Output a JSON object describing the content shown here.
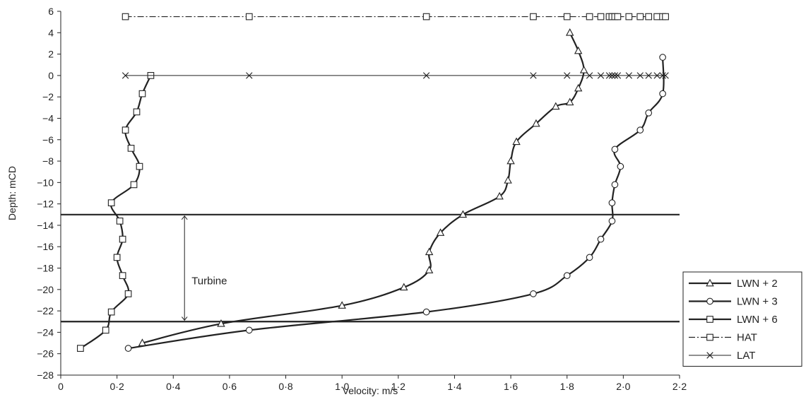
{
  "chart_data": {
    "type": "line",
    "title": "",
    "xlabel": "Velocity: m/s",
    "ylabel": "Depth: mCD",
    "xlim": [
      0,
      2.2
    ],
    "ylim": [
      -28,
      6
    ],
    "x_ticks": [
      "0",
      "0·2",
      "0·4",
      "0·6",
      "0·8",
      "1·0",
      "1·2",
      "1·4",
      "1·6",
      "1·8",
      "2·0",
      "2·2"
    ],
    "y_ticks": [
      "6",
      "4",
      "2",
      "0",
      "−2",
      "−4",
      "−6",
      "−8",
      "−10",
      "−12",
      "−14",
      "−16",
      "−18",
      "−20",
      "−22",
      "−24",
      "−26",
      "−28"
    ],
    "grid": false,
    "legend_position": "bottom-right",
    "series": [
      {
        "name": "LWN + 2",
        "marker": "triangle",
        "line": "solid-thick",
        "points": [
          [
            1.81,
            4.0
          ],
          [
            1.84,
            2.3
          ],
          [
            1.86,
            0.5
          ],
          [
            1.84,
            -1.2
          ],
          [
            1.81,
            -2.5
          ],
          [
            1.76,
            -2.9
          ],
          [
            1.69,
            -4.5
          ],
          [
            1.62,
            -6.2
          ],
          [
            1.6,
            -8.0
          ],
          [
            1.59,
            -9.8
          ],
          [
            1.56,
            -11.3
          ],
          [
            1.43,
            -13.0
          ],
          [
            1.35,
            -14.7
          ],
          [
            1.31,
            -16.5
          ],
          [
            1.31,
            -18.2
          ],
          [
            1.22,
            -19.8
          ],
          [
            1.0,
            -21.5
          ],
          [
            0.57,
            -23.2
          ],
          [
            0.29,
            -25.0
          ]
        ]
      },
      {
        "name": "LWN + 3",
        "marker": "circle",
        "line": "solid-thick",
        "points": [
          [
            2.14,
            1.7
          ],
          [
            2.14,
            -1.7
          ],
          [
            2.09,
            -3.5
          ],
          [
            2.06,
            -5.1
          ],
          [
            1.97,
            -6.9
          ],
          [
            1.99,
            -8.5
          ],
          [
            1.97,
            -10.2
          ],
          [
            1.96,
            -11.9
          ],
          [
            1.96,
            -13.6
          ],
          [
            1.92,
            -15.3
          ],
          [
            1.88,
            -17.0
          ],
          [
            1.8,
            -18.7
          ],
          [
            1.68,
            -20.4
          ],
          [
            1.3,
            -22.1
          ],
          [
            0.67,
            -23.8
          ],
          [
            0.24,
            -25.5
          ]
        ]
      },
      {
        "name": "LWN + 6",
        "marker": "square",
        "line": "solid-thick",
        "points": [
          [
            0.32,
            0.0
          ],
          [
            0.29,
            -1.7
          ],
          [
            0.27,
            -3.4
          ],
          [
            0.23,
            -5.1
          ],
          [
            0.25,
            -6.8
          ],
          [
            0.28,
            -8.5
          ],
          [
            0.26,
            -10.2
          ],
          [
            0.18,
            -11.9
          ],
          [
            0.21,
            -13.6
          ],
          [
            0.22,
            -15.3
          ],
          [
            0.2,
            -17.0
          ],
          [
            0.22,
            -18.7
          ],
          [
            0.24,
            -20.4
          ],
          [
            0.18,
            -22.1
          ],
          [
            0.16,
            -23.8
          ],
          [
            0.07,
            -25.5
          ]
        ]
      },
      {
        "name": "HAT",
        "marker": "square",
        "line": "dash-dot",
        "points": [
          [
            0.23,
            5.5
          ],
          [
            0.67,
            5.5
          ],
          [
            1.3,
            5.5
          ],
          [
            1.68,
            5.5
          ],
          [
            1.8,
            5.5
          ],
          [
            1.88,
            5.5
          ],
          [
            1.92,
            5.5
          ],
          [
            1.95,
            5.5
          ],
          [
            1.96,
            5.5
          ],
          [
            1.97,
            5.5
          ],
          [
            1.98,
            5.5
          ],
          [
            2.02,
            5.5
          ],
          [
            2.06,
            5.5
          ],
          [
            2.09,
            5.5
          ],
          [
            2.12,
            5.5
          ],
          [
            2.14,
            5.5
          ],
          [
            2.15,
            5.5
          ]
        ]
      },
      {
        "name": "LAT",
        "marker": "cross",
        "line": "solid-thin",
        "points": [
          [
            0.23,
            0.0
          ],
          [
            0.67,
            0.0
          ],
          [
            1.3,
            0.0
          ],
          [
            1.68,
            0.0
          ],
          [
            1.8,
            0.0
          ],
          [
            1.88,
            0.0
          ],
          [
            1.92,
            0.0
          ],
          [
            1.95,
            0.0
          ],
          [
            1.96,
            0.0
          ],
          [
            1.97,
            0.0
          ],
          [
            1.98,
            0.0
          ],
          [
            2.02,
            0.0
          ],
          [
            2.06,
            0.0
          ],
          [
            2.09,
            0.0
          ],
          [
            2.12,
            0.0
          ],
          [
            2.14,
            0.0
          ],
          [
            2.15,
            0.0
          ]
        ]
      }
    ],
    "reference_lines": [
      {
        "type": "horizontal",
        "y": -13
      },
      {
        "type": "horizontal",
        "y": -23
      }
    ],
    "annotations": [
      {
        "text": "Turbine",
        "arrow": "double",
        "x": 0.44,
        "y_from": -13,
        "y_to": -23,
        "text_y": -19.2
      }
    ]
  }
}
